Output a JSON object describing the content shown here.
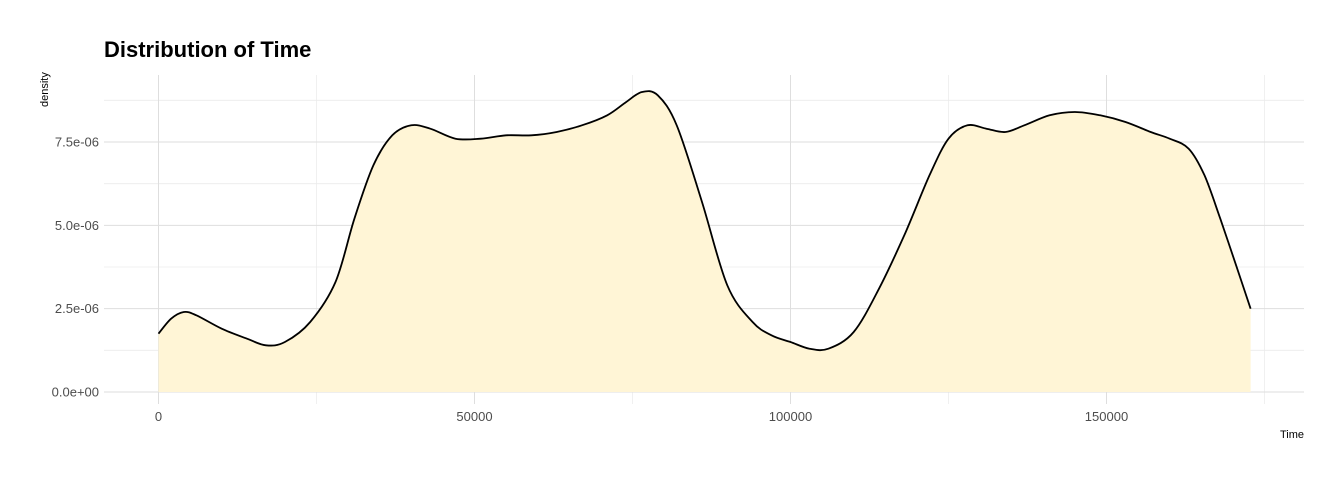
{
  "chart_data": {
    "type": "area",
    "title": "Distribution of Time",
    "xlabel": "Time",
    "ylabel": "density",
    "xlim": [
      -17000,
      181000
    ],
    "ylim": [
      0,
      9.5e-06
    ],
    "x_ticks": [
      0,
      50000,
      100000,
      150000
    ],
    "x_tick_labels": [
      "0",
      "50000",
      "100000",
      "150000"
    ],
    "y_ticks": [
      0,
      2.5e-06,
      5e-06,
      7.5e-06
    ],
    "y_tick_labels": [
      "0.0e+00",
      "2.5e-06",
      "5.0e-06",
      "7.5e-06"
    ],
    "grid": true,
    "fill_color": "#FFF5D6",
    "line_color": "#000000",
    "series": [
      {
        "x": [
          0,
          2000,
          4000,
          6000,
          10000,
          14000,
          17000,
          20000,
          24000,
          28000,
          31000,
          34000,
          37000,
          40000,
          43000,
          47000,
          51000,
          55000,
          59000,
          63000,
          67000,
          71000,
          74000,
          76500,
          79000,
          82000,
          86000,
          90000,
          94000,
          97000,
          100000,
          103000,
          106000,
          110000,
          114000,
          118000,
          122000,
          125000,
          128000,
          131000,
          134000,
          137000,
          141000,
          145000,
          149000,
          153000,
          157000,
          160000,
          163000,
          165500,
          168000,
          170500,
          172800
        ],
        "y": [
          1.75e-06,
          2.2e-06,
          2.4e-06,
          2.3e-06,
          1.9e-06,
          1.6e-06,
          1.4e-06,
          1.5e-06,
          2.1e-06,
          3.3e-06,
          5.2e-06,
          6.8e-06,
          7.7e-06,
          8e-06,
          7.9e-06,
          7.6e-06,
          7.6e-06,
          7.7e-06,
          7.7e-06,
          7.8e-06,
          8e-06,
          8.3e-06,
          8.7e-06,
          9e-06,
          8.9e-06,
          8e-06,
          5.7e-06,
          3.2e-06,
          2.1e-06,
          1.7e-06,
          1.5e-06,
          1.3e-06,
          1.3e-06,
          1.8e-06,
          3.1e-06,
          4.7e-06,
          6.5e-06,
          7.6e-06,
          8e-06,
          7.9e-06,
          7.8e-06,
          8e-06,
          8.3e-06,
          8.4e-06,
          8.3e-06,
          8.1e-06,
          7.8e-06,
          7.6e-06,
          7.3e-06,
          6.5e-06,
          5.2e-06,
          3.8e-06,
          2.5e-06
        ]
      }
    ]
  }
}
